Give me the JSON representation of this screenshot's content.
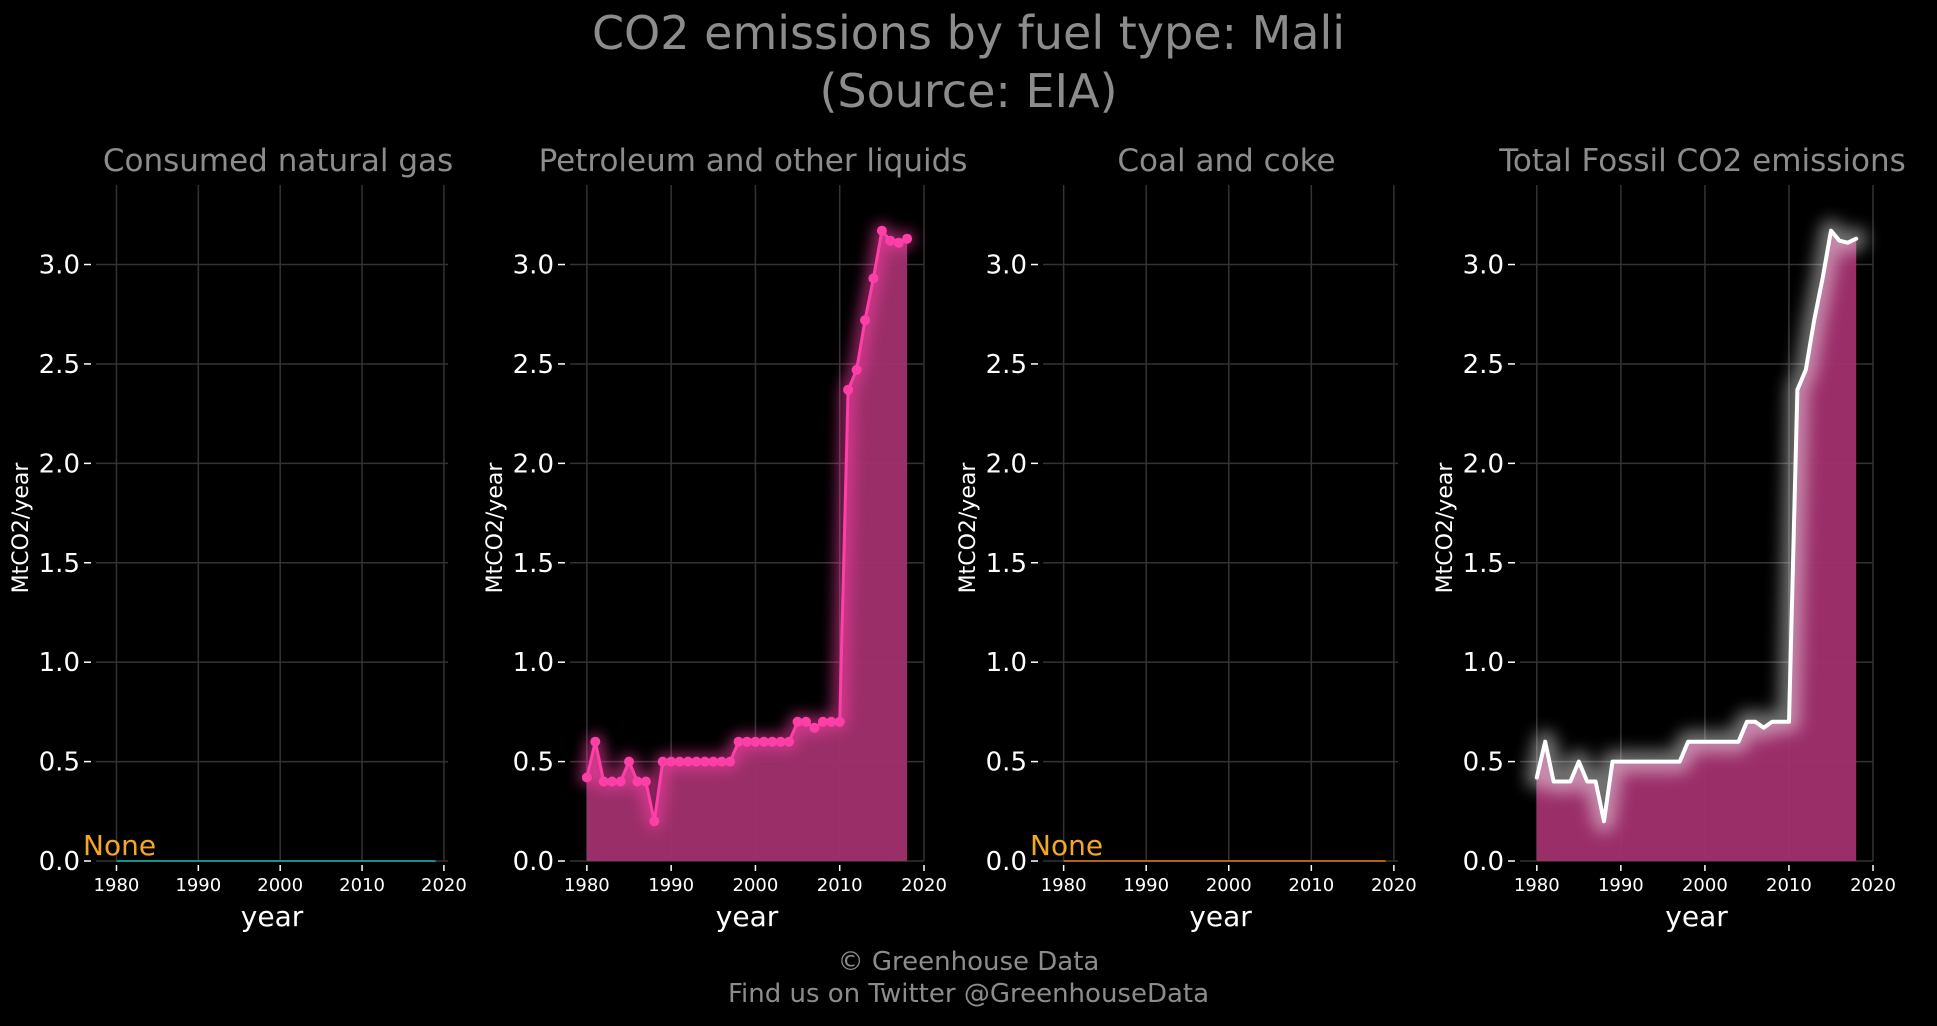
{
  "title_line1": "CO2 emissions by fuel type: Mali",
  "title_line2": "(Source: EIA)",
  "credit_line1": "© Greenhouse Data",
  "credit_line2": "Find us on Twitter @GreenhouseData",
  "colors": {
    "background": "#000000",
    "grid": "#333333",
    "title_text": "#8c8c8c",
    "tick_text": "#ffffff",
    "petroleum_line": "#ff3fa8",
    "petroleum_fill": "#a2306f",
    "total_line": "#ffffff",
    "total_fill": "#a2306f",
    "gas_line": "#19b5b5",
    "coal_line": "#e07b1a",
    "none_label": "#f5a623"
  },
  "chart_data": [
    {
      "type": "line",
      "title": "Consumed natural gas",
      "xlabel": "year",
      "ylabel": "MtCO2/year",
      "xlim": [
        1977.5,
        2020.5
      ],
      "ylim": [
        0,
        3.4
      ],
      "xticks": [
        "1980",
        "1990",
        "2000",
        "2010",
        "2020"
      ],
      "yticks": [
        "0.0",
        "0.5",
        "1.0",
        "1.5",
        "2.0",
        "2.5",
        "3.0"
      ],
      "grid": true,
      "annotation": "None",
      "series": [
        {
          "x": [
            1980,
            2019
          ],
          "values": [
            0,
            0
          ]
        }
      ]
    },
    {
      "type": "area",
      "title": "Petroleum and other liquids",
      "xlabel": "year",
      "ylabel": "MtCO2/year",
      "xlim": [
        1978,
        2020
      ],
      "ylim": [
        0,
        3.4
      ],
      "xticks": [
        "1980",
        "1990",
        "2000",
        "2010",
        "2020"
      ],
      "yticks": [
        "0.0",
        "0.5",
        "1.0",
        "1.5",
        "2.0",
        "2.5",
        "3.0"
      ],
      "grid": true,
      "markers": true,
      "series": [
        {
          "x": [
            1980,
            1981,
            1982,
            1983,
            1984,
            1985,
            1986,
            1987,
            1988,
            1989,
            1990,
            1991,
            1992,
            1993,
            1994,
            1995,
            1996,
            1997,
            1998,
            1999,
            2000,
            2001,
            2002,
            2003,
            2004,
            2005,
            2006,
            2007,
            2008,
            2009,
            2010,
            2011,
            2012,
            2013,
            2014,
            2015,
            2016,
            2017,
            2018
          ],
          "values": [
            0.42,
            0.6,
            0.4,
            0.4,
            0.4,
            0.5,
            0.4,
            0.4,
            0.2,
            0.5,
            0.5,
            0.5,
            0.5,
            0.5,
            0.5,
            0.5,
            0.5,
            0.5,
            0.6,
            0.6,
            0.6,
            0.6,
            0.6,
            0.6,
            0.6,
            0.7,
            0.7,
            0.67,
            0.7,
            0.7,
            0.7,
            2.37,
            2.47,
            2.72,
            2.93,
            3.17,
            3.12,
            3.11,
            3.13
          ]
        }
      ]
    },
    {
      "type": "line",
      "title": "Coal and coke",
      "xlabel": "year",
      "ylabel": "MtCO2/year",
      "xlim": [
        1977.5,
        2020.5
      ],
      "ylim": [
        0,
        3.4
      ],
      "xticks": [
        "1980",
        "1990",
        "2000",
        "2010",
        "2020"
      ],
      "yticks": [
        "0.0",
        "0.5",
        "1.0",
        "1.5",
        "2.0",
        "2.5",
        "3.0"
      ],
      "grid": true,
      "annotation": "None",
      "series": [
        {
          "x": [
            1980,
            2019
          ],
          "values": [
            0,
            0
          ]
        }
      ]
    },
    {
      "type": "area",
      "title": "Total Fossil CO2 emissions",
      "xlabel": "year",
      "ylabel": "MtCO2/year",
      "xlim": [
        1978,
        2020
      ],
      "ylim": [
        0,
        3.4
      ],
      "xticks": [
        "1980",
        "1990",
        "2000",
        "2010",
        "2020"
      ],
      "yticks": [
        "0.0",
        "0.5",
        "1.0",
        "1.5",
        "2.0",
        "2.5",
        "3.0"
      ],
      "grid": true,
      "markers": false,
      "series": [
        {
          "x": [
            1980,
            1981,
            1982,
            1983,
            1984,
            1985,
            1986,
            1987,
            1988,
            1989,
            1990,
            1991,
            1992,
            1993,
            1994,
            1995,
            1996,
            1997,
            1998,
            1999,
            2000,
            2001,
            2002,
            2003,
            2004,
            2005,
            2006,
            2007,
            2008,
            2009,
            2010,
            2011,
            2012,
            2013,
            2014,
            2015,
            2016,
            2017,
            2018
          ],
          "values": [
            0.42,
            0.6,
            0.4,
            0.4,
            0.4,
            0.5,
            0.4,
            0.4,
            0.2,
            0.5,
            0.5,
            0.5,
            0.5,
            0.5,
            0.5,
            0.5,
            0.5,
            0.5,
            0.6,
            0.6,
            0.6,
            0.6,
            0.6,
            0.6,
            0.6,
            0.7,
            0.7,
            0.67,
            0.7,
            0.7,
            0.7,
            2.37,
            2.47,
            2.72,
            2.93,
            3.17,
            3.12,
            3.11,
            3.13
          ]
        }
      ]
    }
  ]
}
